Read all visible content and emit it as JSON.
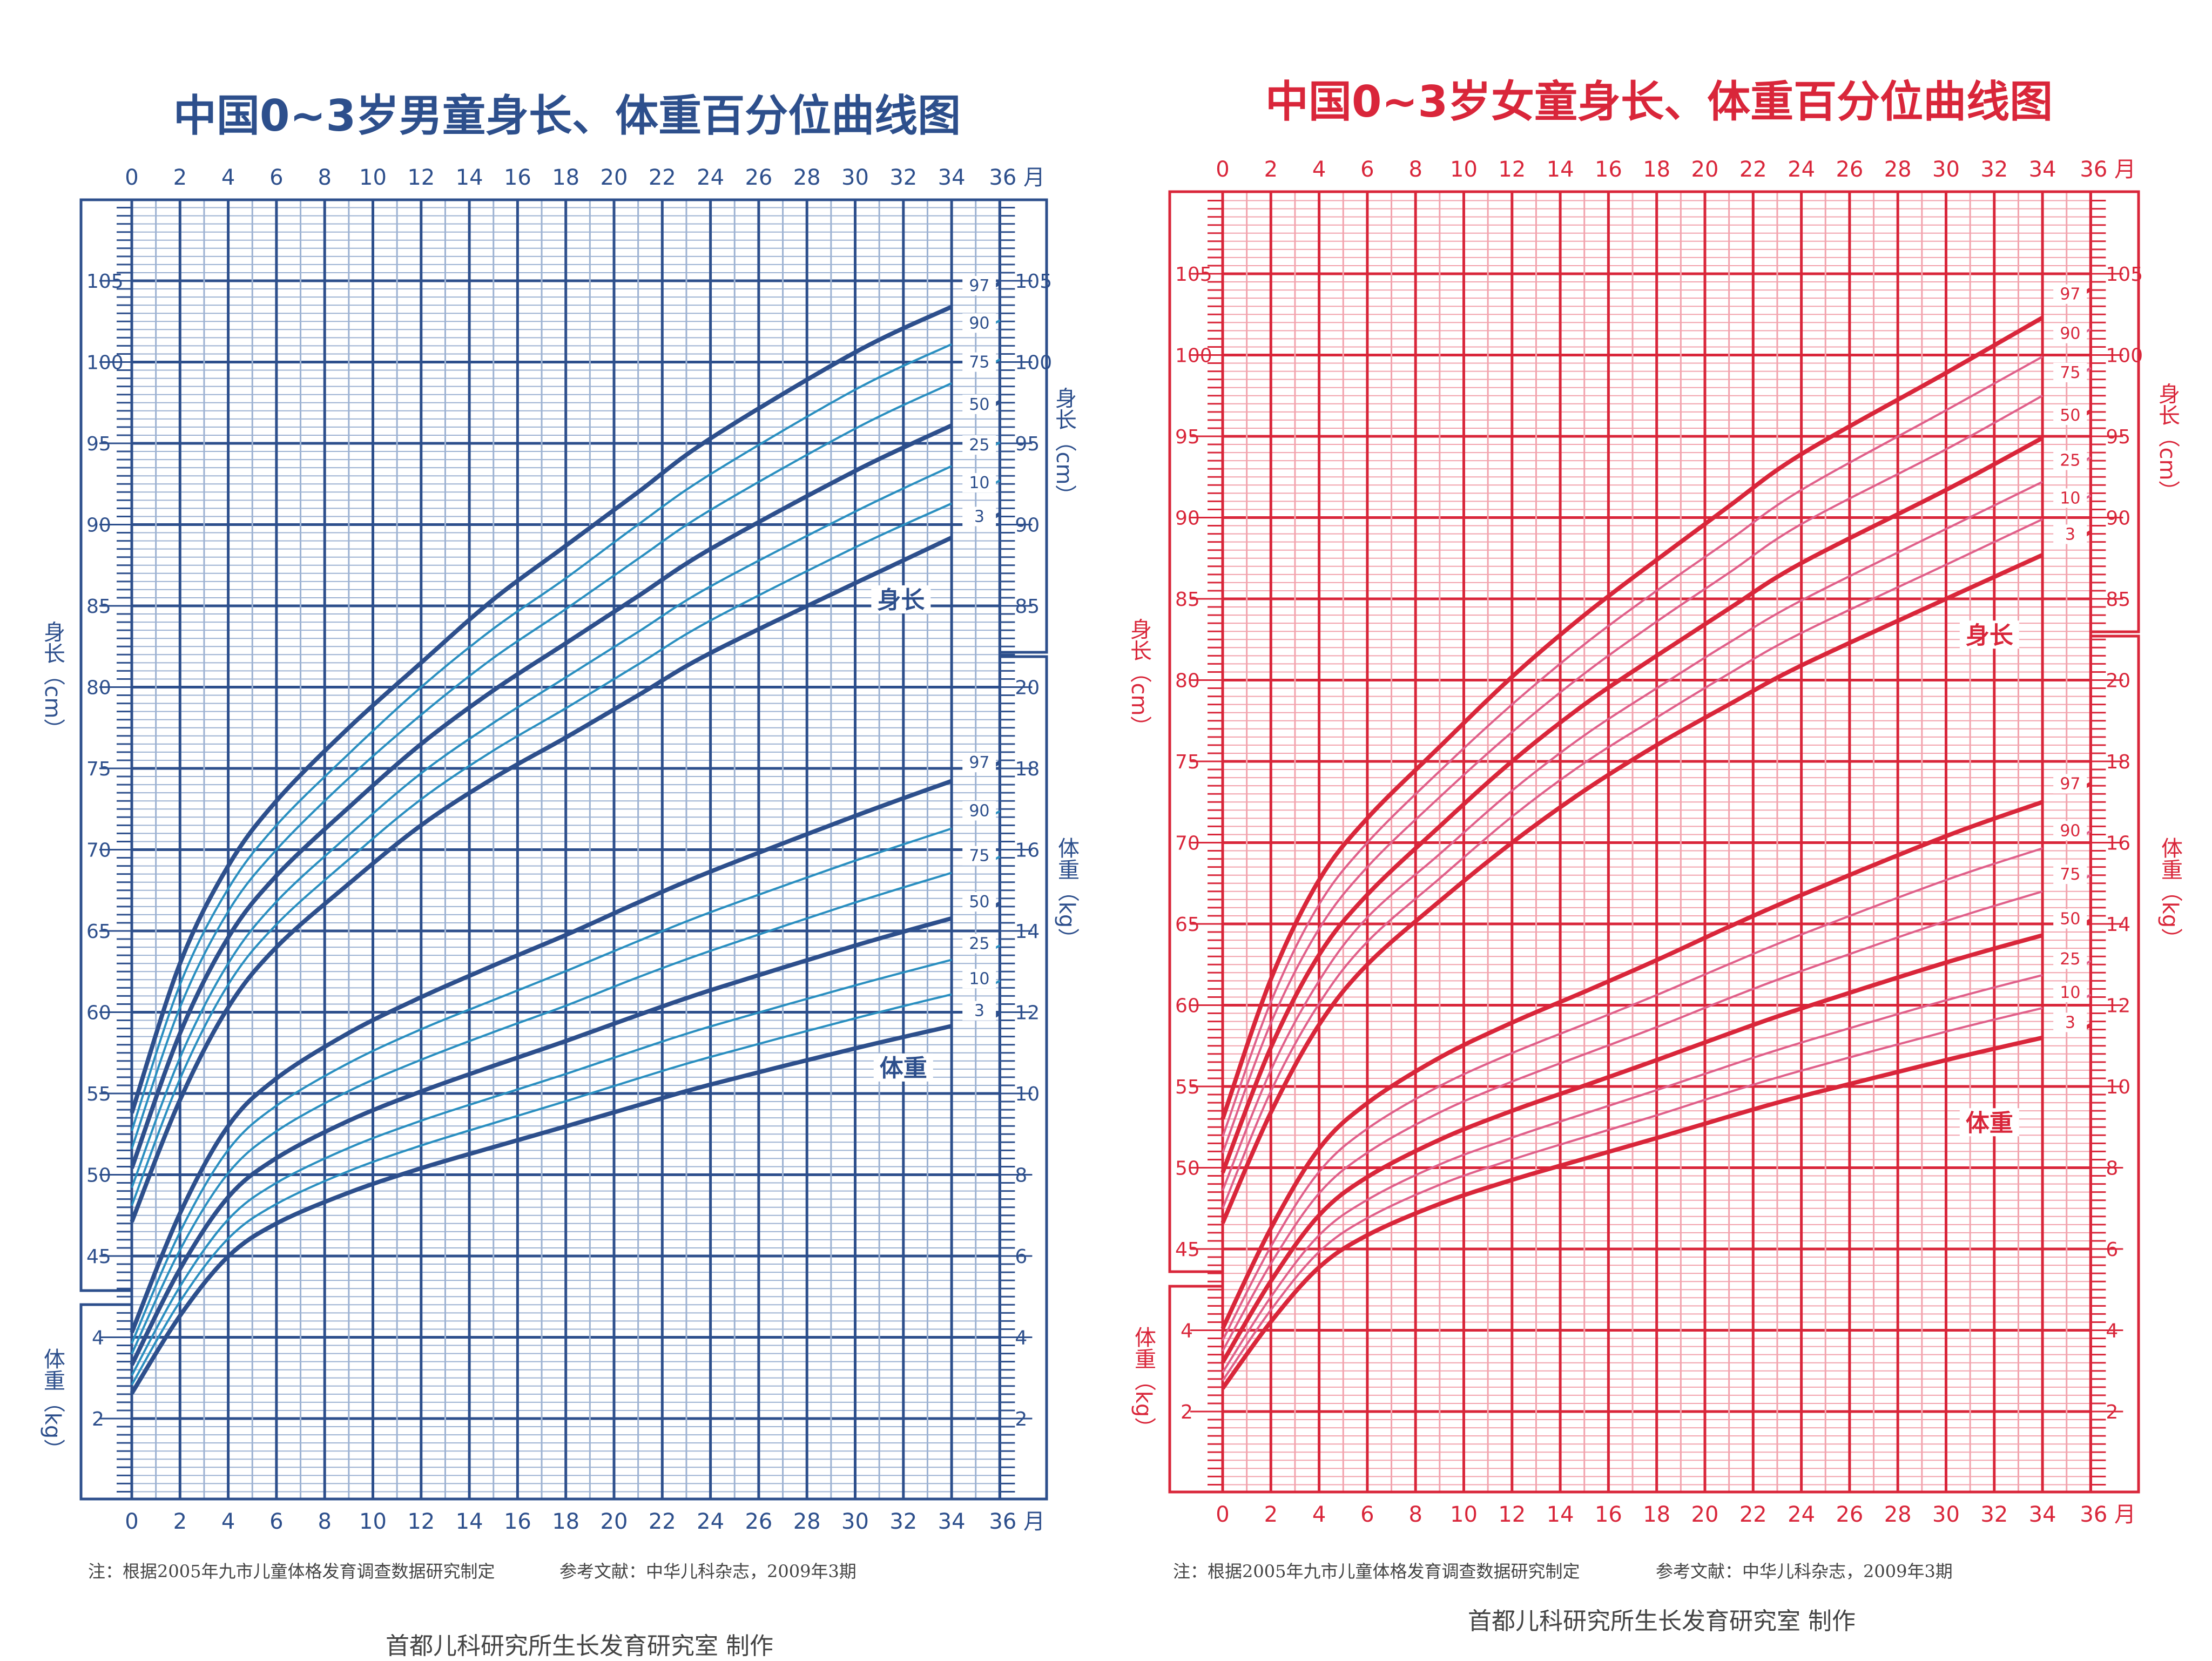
{
  "footer": {
    "note": "注：根据2005年九市儿童体格发育调查数据研究制定",
    "reference": "参考文献：中华儿科杂志，2009年3期",
    "credit": "首都儿科研究所生长发育研究室 制作"
  },
  "chart_data": [
    {
      "type": "line",
      "title": "中国0~3岁男童身长、体重百分位曲线图",
      "x_ticks": [
        0,
        2,
        4,
        6,
        8,
        10,
        12,
        14,
        16,
        18,
        20,
        22,
        24,
        26,
        28,
        30,
        32,
        34,
        36
      ],
      "x_unit": "月",
      "xlim": [
        0,
        36
      ],
      "height_axis": {
        "label": "身长（cm）",
        "ylim": [
          30,
          110
        ],
        "left_ticks": [
          45,
          50,
          55,
          60,
          65,
          70,
          75,
          80,
          85,
          90,
          95,
          100,
          105
        ],
        "right_ticks": [
          85,
          90,
          95,
          100,
          105
        ]
      },
      "weight_axis": {
        "label": "体重（kg）",
        "left_ticks": [
          2,
          4
        ],
        "right_ticks": [
          2,
          4,
          6,
          8,
          10,
          12,
          14,
          16,
          18,
          20
        ]
      },
      "height_curve_label": "身长",
      "weight_curve_label": "体重",
      "grid": true,
      "colors": {
        "main": "#2d4f8c",
        "light_curve": "#2a8fc0",
        "minor_grid": "#9db2d2"
      },
      "x": [
        0,
        2,
        4,
        6,
        9,
        12,
        15,
        18,
        21,
        24,
        30,
        34
      ],
      "height_series": [
        {
          "name": "97",
          "values": [
            53.8,
            63.0,
            69.0,
            73.0,
            77.5,
            81.5,
            85.4,
            88.7,
            92.0,
            95.3,
            100.6,
            103.4
          ]
        },
        {
          "name": "90",
          "values": [
            52.7,
            61.7,
            67.6,
            71.5,
            75.9,
            80.0,
            83.6,
            86.7,
            90.0,
            93.1,
            98.3,
            101.1
          ]
        },
        {
          "name": "75",
          "values": [
            51.6,
            60.3,
            66.2,
            70.0,
            74.4,
            78.3,
            81.8,
            84.8,
            87.9,
            90.9,
            95.9,
            98.7
          ]
        },
        {
          "name": "50",
          "values": [
            50.4,
            58.7,
            64.6,
            68.4,
            72.6,
            76.5,
            79.8,
            82.7,
            85.6,
            88.5,
            93.3,
            96.1
          ]
        },
        {
          "name": "25",
          "values": [
            49.2,
            57.2,
            63.0,
            66.8,
            70.9,
            74.7,
            77.8,
            80.6,
            83.4,
            86.2,
            90.8,
            93.6
          ]
        },
        {
          "name": "10",
          "values": [
            48.1,
            55.9,
            61.7,
            65.4,
            69.4,
            73.1,
            76.1,
            78.7,
            81.4,
            84.1,
            88.6,
            91.3
          ]
        },
        {
          "name": "3",
          "values": [
            47.1,
            54.6,
            60.3,
            64.0,
            67.9,
            71.5,
            74.4,
            76.9,
            79.5,
            82.1,
            86.4,
            89.2
          ]
        }
      ],
      "weight_series": [
        {
          "name": "97",
          "values": [
            4.12,
            7.05,
            9.2,
            10.37,
            11.49,
            12.37,
            13.15,
            13.9,
            14.7,
            15.46,
            16.83,
            17.69
          ]
        },
        {
          "name": "90",
          "values": [
            3.85,
            6.59,
            8.61,
            9.7,
            10.75,
            11.58,
            12.3,
            13.01,
            13.75,
            14.46,
            15.73,
            16.52
          ]
        },
        {
          "name": "75",
          "values": [
            3.59,
            6.15,
            8.04,
            9.07,
            10.06,
            10.83,
            11.51,
            12.16,
            12.86,
            13.51,
            14.7,
            15.43
          ]
        },
        {
          "name": "50",
          "values": [
            3.32,
            5.68,
            7.45,
            8.41,
            9.33,
            10.05,
            10.68,
            11.29,
            11.93,
            12.54,
            13.64,
            14.31
          ]
        },
        {
          "name": "25",
          "values": [
            3.06,
            5.25,
            6.9,
            7.8,
            8.66,
            9.33,
            9.91,
            10.48,
            11.08,
            11.65,
            12.66,
            13.29
          ]
        },
        {
          "name": "10",
          "values": [
            2.83,
            4.88,
            6.43,
            7.28,
            8.09,
            8.72,
            9.27,
            9.81,
            10.37,
            10.9,
            11.85,
            12.44
          ]
        },
        {
          "name": "3",
          "values": [
            2.62,
            4.53,
            5.99,
            6.8,
            7.56,
            8.16,
            8.68,
            9.19,
            9.71,
            10.22,
            11.11,
            11.66
          ]
        }
      ]
    },
    {
      "type": "line",
      "title": "中国0~3岁女童身长、体重百分位曲线图",
      "x_ticks": [
        0,
        2,
        4,
        6,
        8,
        10,
        12,
        14,
        16,
        18,
        20,
        22,
        24,
        26,
        28,
        30,
        32,
        34,
        36
      ],
      "x_unit": "月",
      "xlim": [
        0,
        36
      ],
      "height_axis": {
        "label": "身长（cm）",
        "ylim": [
          30,
          110
        ],
        "left_ticks": [
          45,
          50,
          55,
          60,
          65,
          70,
          75,
          80,
          85,
          90,
          95,
          100,
          105
        ],
        "right_ticks": [
          85,
          90,
          95,
          100,
          105
        ]
      },
      "weight_axis": {
        "label": "体重（kg）",
        "left_ticks": [
          2,
          4
        ],
        "right_ticks": [
          2,
          4,
          6,
          8,
          10,
          12,
          14,
          16,
          18,
          20
        ]
      },
      "height_curve_label": "身长",
      "weight_curve_label": "体重",
      "grid": true,
      "colors": {
        "main": "#d9263a",
        "light_curve": "#e0608a",
        "minor_grid": "#f2a3ad"
      },
      "x": [
        0,
        2,
        4,
        6,
        9,
        12,
        15,
        18,
        21,
        24,
        30,
        34
      ],
      "height_series": [
        {
          "name": "97",
          "values": [
            53.0,
            61.6,
            67.7,
            71.5,
            75.9,
            80.2,
            84.0,
            87.4,
            90.7,
            93.9,
            98.9,
            102.3
          ]
        },
        {
          "name": "90",
          "values": [
            51.9,
            60.2,
            66.2,
            70.0,
            74.4,
            78.5,
            82.2,
            85.5,
            88.6,
            91.7,
            96.6,
            99.9
          ]
        },
        {
          "name": "75",
          "values": [
            50.9,
            58.9,
            64.7,
            68.5,
            72.8,
            76.8,
            80.4,
            83.6,
            86.6,
            89.6,
            94.2,
            97.5
          ]
        },
        {
          "name": "50",
          "values": [
            49.7,
            57.4,
            63.1,
            66.8,
            71.0,
            75.0,
            78.5,
            81.5,
            84.4,
            87.2,
            91.7,
            94.9
          ]
        },
        {
          "name": "25",
          "values": [
            48.6,
            56.0,
            61.5,
            65.4,
            69.3,
            73.2,
            76.6,
            79.5,
            82.3,
            84.9,
            89.3,
            92.2
          ]
        },
        {
          "name": "10",
          "values": [
            47.5,
            54.7,
            60.1,
            63.9,
            67.8,
            71.6,
            74.9,
            77.7,
            80.4,
            82.9,
            87.1,
            89.9
          ]
        },
        {
          "name": "3",
          "values": [
            46.6,
            53.4,
            58.8,
            62.5,
            66.4,
            70.0,
            73.2,
            76.0,
            78.5,
            80.9,
            85.0,
            87.7
          ]
        }
      ],
      "weight_series": [
        {
          "name": "97",
          "values": [
            4.04,
            6.51,
            8.47,
            9.59,
            10.71,
            11.57,
            12.33,
            13.11,
            13.93,
            14.71,
            16.16,
            17.0
          ]
        },
        {
          "name": "90",
          "values": [
            3.75,
            6.06,
            7.9,
            8.96,
            10.01,
            10.82,
            11.53,
            12.25,
            13.01,
            13.74,
            15.08,
            15.86
          ]
        },
        {
          "name": "75",
          "values": [
            3.49,
            5.64,
            7.37,
            8.37,
            9.36,
            10.12,
            10.79,
            11.46,
            12.17,
            12.84,
            14.07,
            14.8
          ]
        },
        {
          "name": "50",
          "values": [
            3.21,
            5.21,
            6.83,
            7.77,
            8.69,
            9.4,
            10.02,
            10.65,
            11.3,
            11.92,
            13.05,
            13.72
          ]
        },
        {
          "name": "25",
          "values": [
            2.96,
            4.82,
            6.34,
            7.21,
            8.08,
            8.74,
            9.33,
            9.91,
            10.51,
            11.08,
            12.12,
            12.74
          ]
        },
        {
          "name": "10",
          "values": [
            2.76,
            4.5,
            5.93,
            6.76,
            7.58,
            8.2,
            8.75,
            9.29,
            9.86,
            10.39,
            11.35,
            11.93
          ]
        },
        {
          "name": "3",
          "values": [
            2.57,
            4.21,
            5.55,
            6.34,
            7.11,
            7.7,
            8.22,
            8.73,
            9.26,
            9.76,
            10.65,
            11.2
          ]
        }
      ]
    }
  ]
}
